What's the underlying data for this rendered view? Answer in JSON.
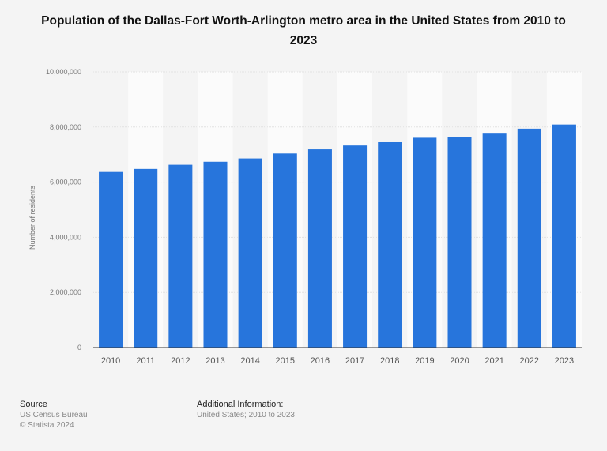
{
  "chart_data": {
    "type": "bar",
    "title": "Population of the Dallas-Fort Worth-Arlington metro area in the United States from 2010 to 2023",
    "xlabel": "",
    "ylabel": "Number of residents",
    "categories": [
      "2010",
      "2011",
      "2012",
      "2013",
      "2014",
      "2015",
      "2016",
      "2017",
      "2018",
      "2019",
      "2020",
      "2021",
      "2022",
      "2023"
    ],
    "values": [
      6370000,
      6480000,
      6630000,
      6740000,
      6860000,
      7040000,
      7190000,
      7330000,
      7450000,
      7610000,
      7650000,
      7760000,
      7940000,
      8090000
    ],
    "ylim": [
      0,
      10000000
    ],
    "yticks": [
      0,
      2000000,
      4000000,
      6000000,
      8000000,
      10000000
    ],
    "ytick_labels": [
      "0",
      "2,000,000",
      "4,000,000",
      "6,000,000",
      "8,000,000",
      "10,000,000"
    ],
    "grid": true,
    "bar_color": "#2775dc"
  },
  "footer": {
    "source_heading": "Source",
    "source_text": "US Census Bureau",
    "copyright": "© Statista 2024",
    "info_heading": "Additional Information:",
    "info_text": "United States; 2010 to 2023"
  }
}
